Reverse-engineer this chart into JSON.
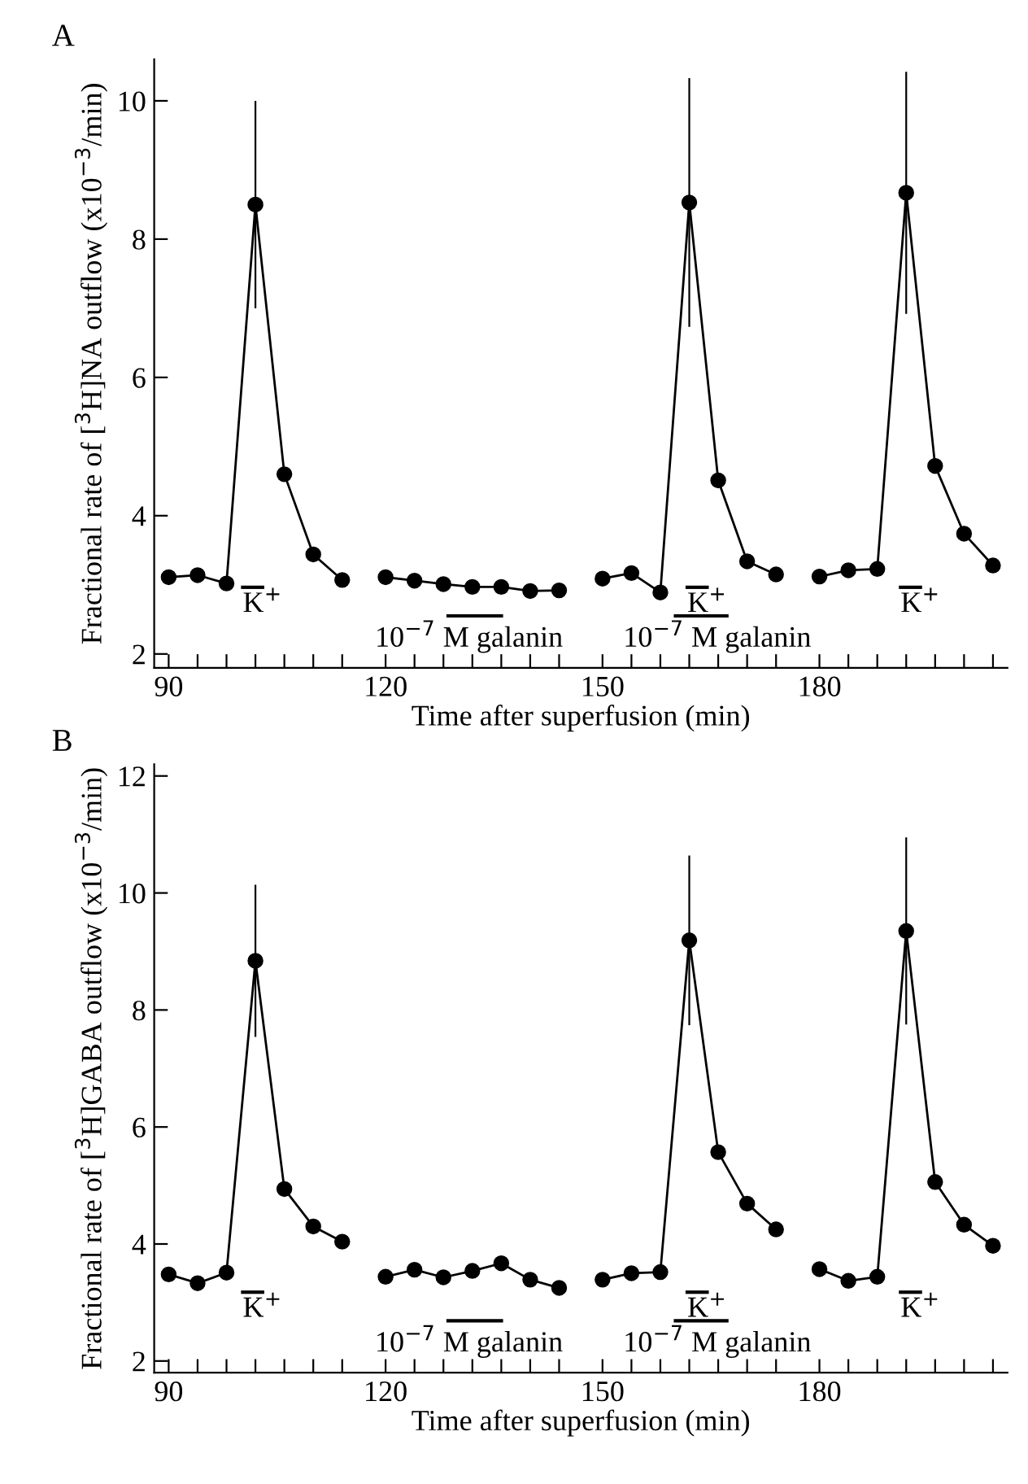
{
  "chart_data": [
    {
      "type": "line",
      "title": "A",
      "xlabel": "Time after superfusion (min)",
      "ylabel": "Fractional rate of [$^{3}$H]NA outflow (x10$^{−3}$/min)",
      "xlim": [
        88,
        206
      ],
      "ylim": [
        1.8,
        10.6
      ],
      "yticks": [
        2,
        4,
        6,
        8,
        10
      ],
      "grid": false,
      "xticks": [
        90,
        {
          "value": 94,
          "label": null
        },
        {
          "value": 98,
          "label": null
        },
        {
          "value": 102,
          "label": null
        },
        {
          "value": 106,
          "label": null
        },
        {
          "value": 110,
          "label": null
        },
        {
          "value": 114,
          "label": null
        },
        120,
        {
          "value": 124,
          "label": null
        },
        {
          "value": 128,
          "label": null
        },
        {
          "value": 132,
          "label": null
        },
        {
          "value": 136,
          "label": null
        },
        {
          "value": 140,
          "label": null
        },
        {
          "value": 144,
          "label": null
        },
        150,
        {
          "value": 154,
          "label": null
        },
        {
          "value": 158,
          "label": null
        },
        {
          "value": 162,
          "label": null
        },
        {
          "value": 166,
          "label": null
        },
        {
          "value": 170,
          "label": null
        },
        {
          "value": 174,
          "label": null
        },
        180,
        {
          "value": 184,
          "label": null
        },
        {
          "value": 188,
          "label": null
        },
        {
          "value": 192,
          "label": null
        },
        {
          "value": 196,
          "label": null
        },
        {
          "value": 200,
          "label": null
        },
        {
          "value": 204,
          "label": null
        }
      ],
      "marker": "circle",
      "line_style": "solid",
      "series": [
        {
          "color": "#000000",
          "x": [
            90,
            94,
            98,
            102,
            106,
            110,
            114
          ],
          "values": [
            3.11,
            3.14,
            3.02,
            8.5,
            4.6,
            3.44,
            3.07
          ],
          "errors": [
            null,
            null,
            null,
            1.5,
            null,
            null,
            null
          ]
        },
        {
          "color": "#000000",
          "x": [
            120,
            124,
            128,
            132,
            136,
            140,
            144
          ],
          "values": [
            3.11,
            3.06,
            3.01,
            2.97,
            2.97,
            2.91,
            2.92
          ]
        },
        {
          "color": "#000000",
          "x": [
            150,
            154,
            158,
            162,
            166,
            170,
            174
          ],
          "values": [
            3.09,
            3.17,
            2.89,
            8.53,
            4.51,
            3.34,
            3.15
          ],
          "errors": [
            null,
            null,
            null,
            1.8,
            null,
            null,
            null
          ]
        },
        {
          "color": "#000000",
          "x": [
            180,
            184,
            188,
            192,
            196,
            200,
            204
          ],
          "values": [
            3.12,
            3.21,
            3.23,
            8.67,
            4.72,
            3.74,
            3.28
          ],
          "errors": [
            null,
            null,
            null,
            1.75,
            null,
            null,
            null
          ]
        }
      ],
      "annotations": [
        "K$^{+}$",
        "10$^{−7}$ M galanin",
        "10$^{−7}$ M galanin",
        "K$^{+}$",
        "K$^{+}$"
      ]
    },
    {
      "type": "line",
      "title": "B",
      "xlabel": "Time after superfusion (min)",
      "ylabel": "Fractional rate of [$^{3}$H]GABA outflow (x10$^{−3}$/min)",
      "xlim": [
        88,
        206
      ],
      "ylim": [
        1.8,
        12.2
      ],
      "yticks": [
        2,
        4,
        6,
        8,
        10,
        12
      ],
      "grid": false,
      "xticks": [
        90,
        {
          "value": 94,
          "label": null
        },
        {
          "value": 98,
          "label": null
        },
        {
          "value": 102,
          "label": null
        },
        {
          "value": 106,
          "label": null
        },
        {
          "value": 110,
          "label": null
        },
        {
          "value": 114,
          "label": null
        },
        120,
        {
          "value": 124,
          "label": null
        },
        {
          "value": 128,
          "label": null
        },
        {
          "value": 132,
          "label": null
        },
        {
          "value": 136,
          "label": null
        },
        {
          "value": 140,
          "label": null
        },
        {
          "value": 144,
          "label": null
        },
        150,
        {
          "value": 154,
          "label": null
        },
        {
          "value": 158,
          "label": null
        },
        {
          "value": 162,
          "label": null
        },
        {
          "value": 166,
          "label": null
        },
        {
          "value": 170,
          "label": null
        },
        {
          "value": 174,
          "label": null
        },
        180,
        {
          "value": 184,
          "label": null
        },
        {
          "value": 188,
          "label": null
        },
        {
          "value": 192,
          "label": null
        },
        {
          "value": 196,
          "label": null
        },
        {
          "value": 200,
          "label": null
        },
        {
          "value": 204,
          "label": null
        }
      ],
      "marker": "circle",
      "line_style": "solid",
      "series": [
        {
          "color": "#000000",
          "x": [
            90,
            94,
            98,
            102,
            106,
            110,
            114
          ],
          "values": [
            3.48,
            3.33,
            3.51,
            8.84,
            4.94,
            4.3,
            4.04
          ],
          "errors": [
            null,
            null,
            null,
            1.3,
            null,
            null,
            null
          ]
        },
        {
          "color": "#000000",
          "x": [
            120,
            124,
            128,
            132,
            136,
            140,
            144
          ],
          "values": [
            3.44,
            3.56,
            3.43,
            3.54,
            3.67,
            3.39,
            3.25
          ]
        },
        {
          "color": "#000000",
          "x": [
            150,
            154,
            158,
            162,
            166,
            170,
            174
          ],
          "values": [
            3.39,
            3.5,
            3.52,
            9.19,
            5.57,
            4.69,
            4.25
          ],
          "errors": [
            null,
            null,
            null,
            1.45,
            null,
            null,
            null
          ]
        },
        {
          "color": "#000000",
          "x": [
            180,
            184,
            188,
            192,
            196,
            200,
            204
          ],
          "values": [
            3.57,
            3.37,
            3.44,
            9.35,
            5.06,
            4.33,
            3.97
          ],
          "errors": [
            null,
            null,
            null,
            1.6,
            null,
            null,
            null
          ]
        }
      ],
      "annotations": [
        "K$^{+}$",
        "10$^{−7}$ M galanin",
        "10$^{−7}$ M galanin",
        "K$^{+}$",
        "K$^{+}$"
      ]
    }
  ]
}
